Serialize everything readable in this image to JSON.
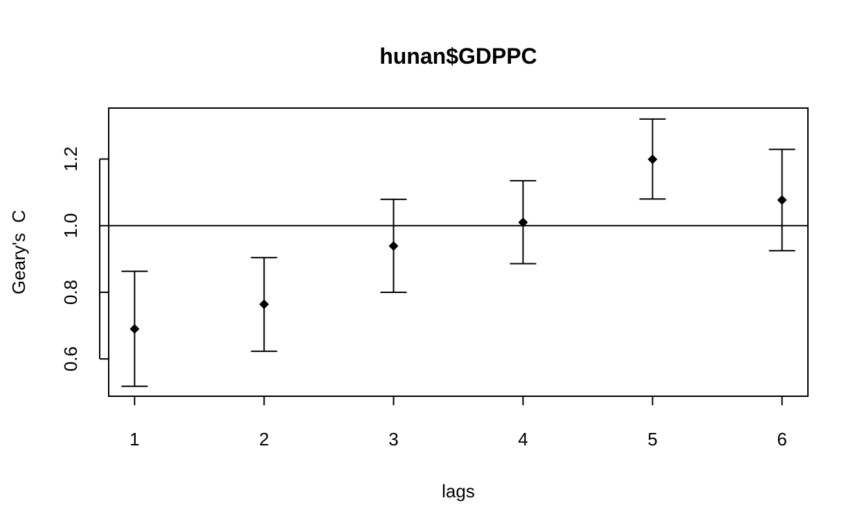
{
  "chart_data": {
    "type": "scatter",
    "title": "hunan$GDPPC",
    "xlabel": "lags",
    "ylabel": "Geary's  C",
    "x": [
      1,
      2,
      3,
      4,
      5,
      6
    ],
    "y": [
      0.69,
      0.764,
      0.939,
      1.01,
      1.199,
      1.077
    ],
    "y_lower": [
      0.518,
      0.623,
      0.8,
      0.886,
      1.08,
      0.925
    ],
    "y_upper": [
      0.863,
      0.904,
      1.079,
      1.135,
      1.32,
      1.229
    ],
    "reference_line": 1.0,
    "x_ticks": [
      "1",
      "2",
      "3",
      "4",
      "5",
      "6"
    ],
    "y_ticks": [
      "0.6",
      "0.8",
      "1.0",
      "1.2"
    ],
    "xlim": [
      0.8,
      6.2
    ],
    "ylim": [
      0.488,
      1.353
    ],
    "grid": false,
    "marker": "diamond",
    "colors": {
      "marks": "#000000",
      "background": "#ffffff"
    }
  }
}
